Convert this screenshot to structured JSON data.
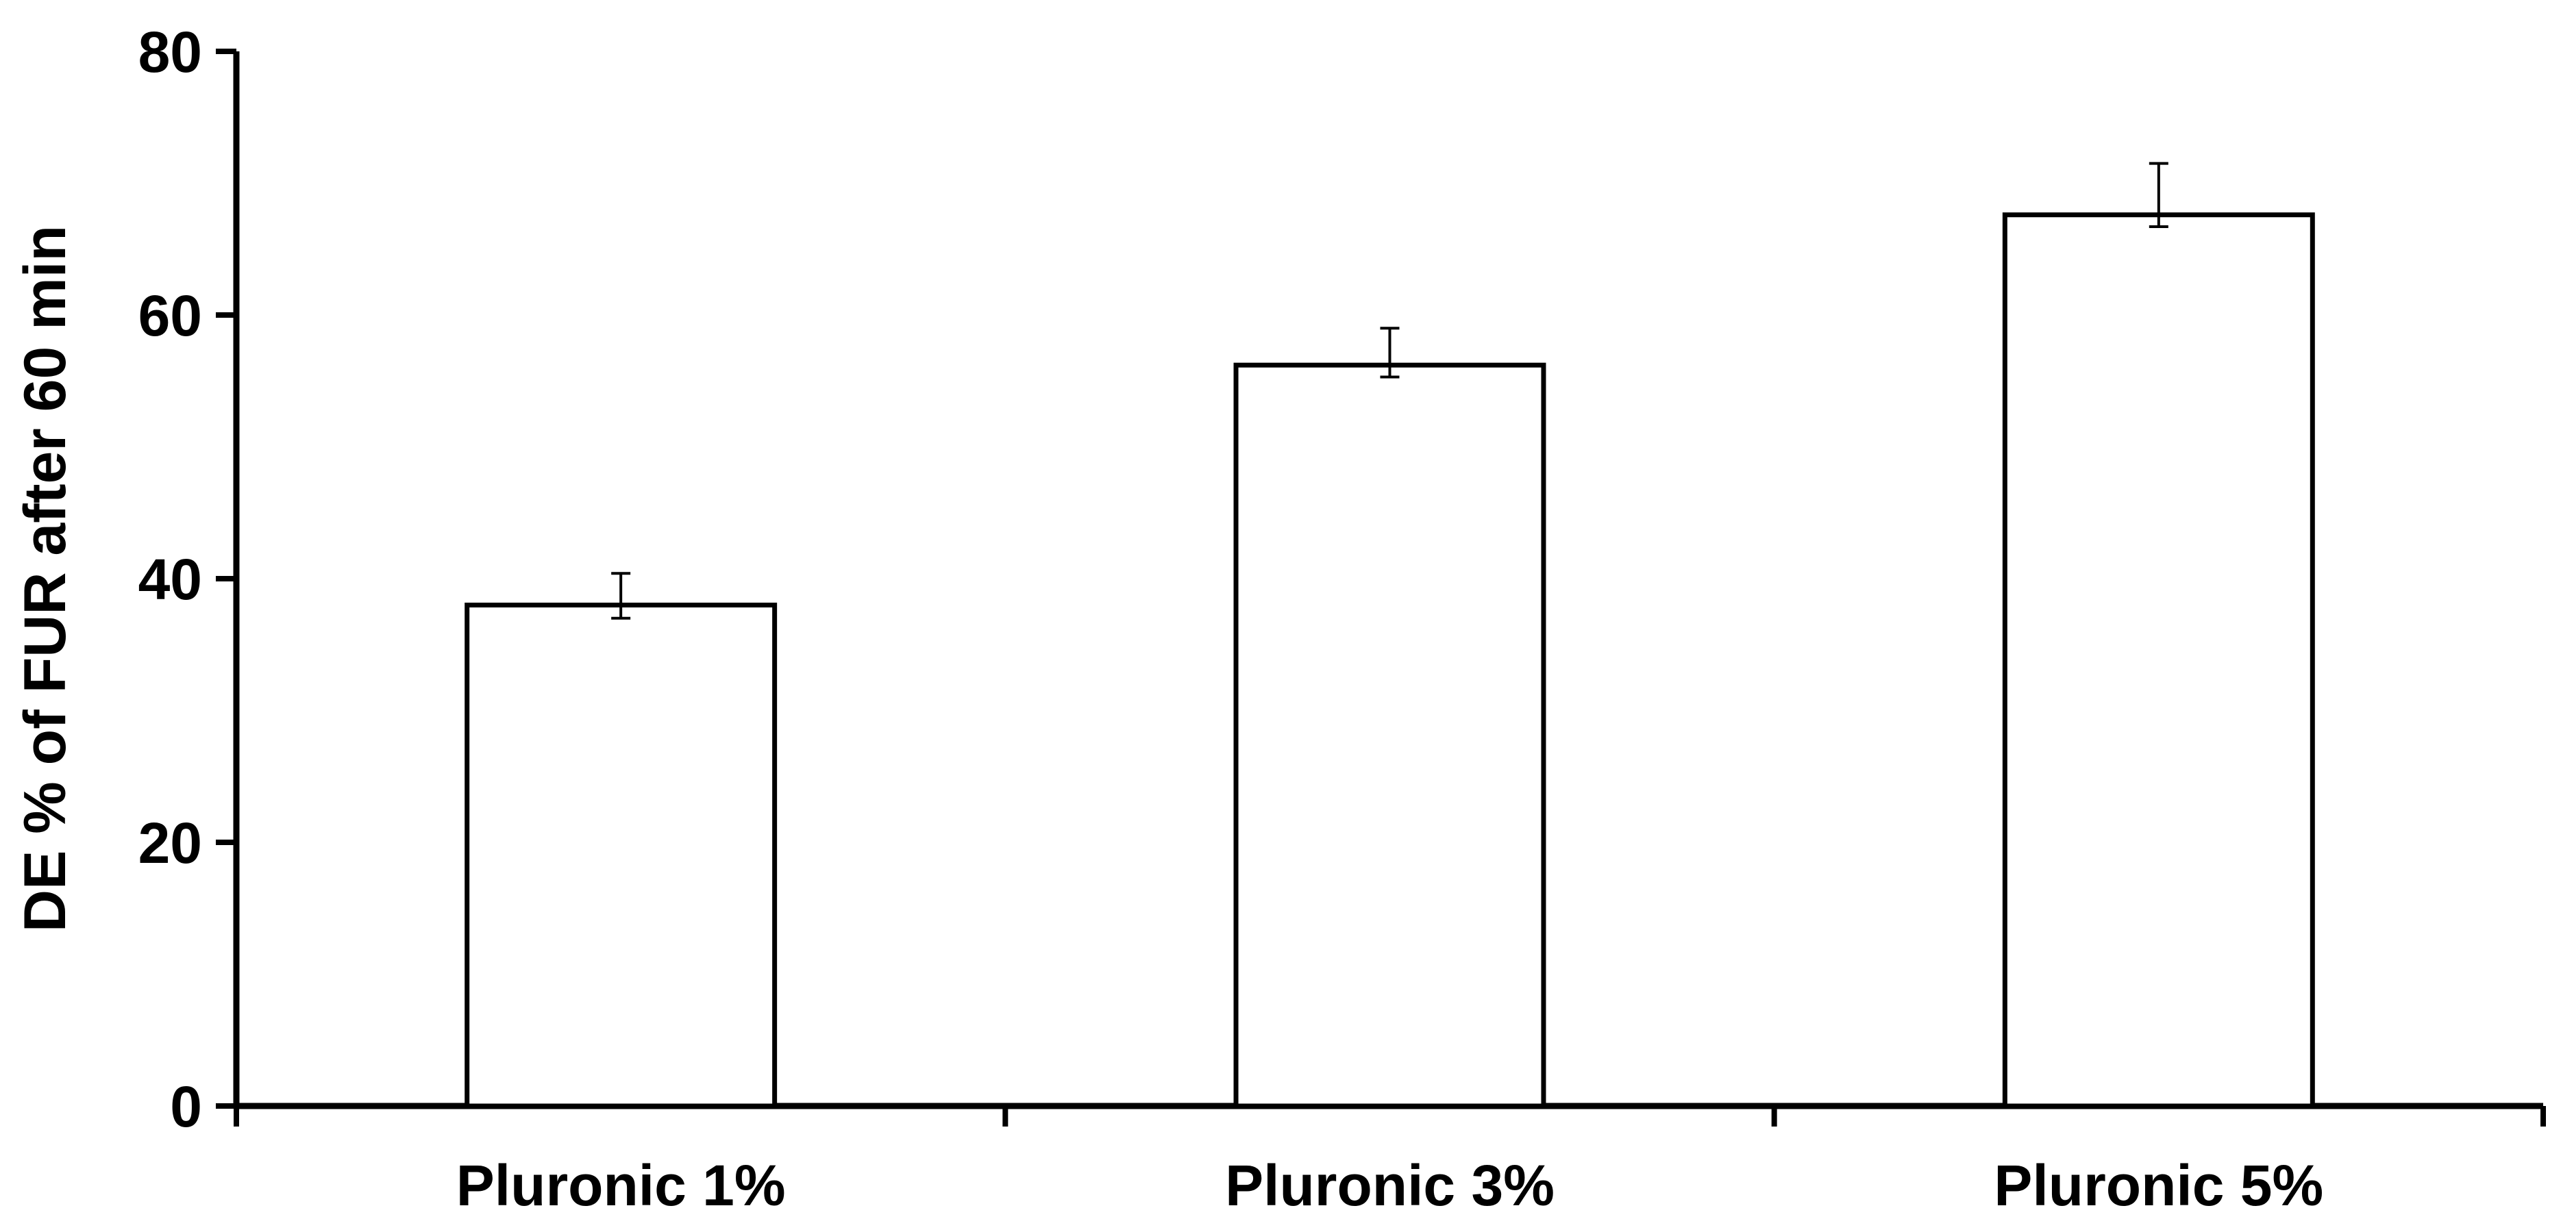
{
  "chart_data": {
    "type": "bar",
    "title": "",
    "xlabel": "",
    "ylabel": "DE % of FUR after 60 min",
    "categories": [
      "Pluronic 1%",
      "Pluronic 3%",
      "Pluronic 5%"
    ],
    "values": [
      38.0,
      56.2,
      67.6
    ],
    "error_low": [
      37.0,
      55.3,
      66.7
    ],
    "error_high": [
      40.4,
      59.0,
      71.5
    ],
    "ylim": [
      0,
      80
    ],
    "yticks": [
      "0",
      "20",
      "40",
      "60",
      "80"
    ],
    "bar_fill": "#ffffff",
    "bar_stroke": "#000000",
    "grid": false,
    "legend": "none"
  }
}
